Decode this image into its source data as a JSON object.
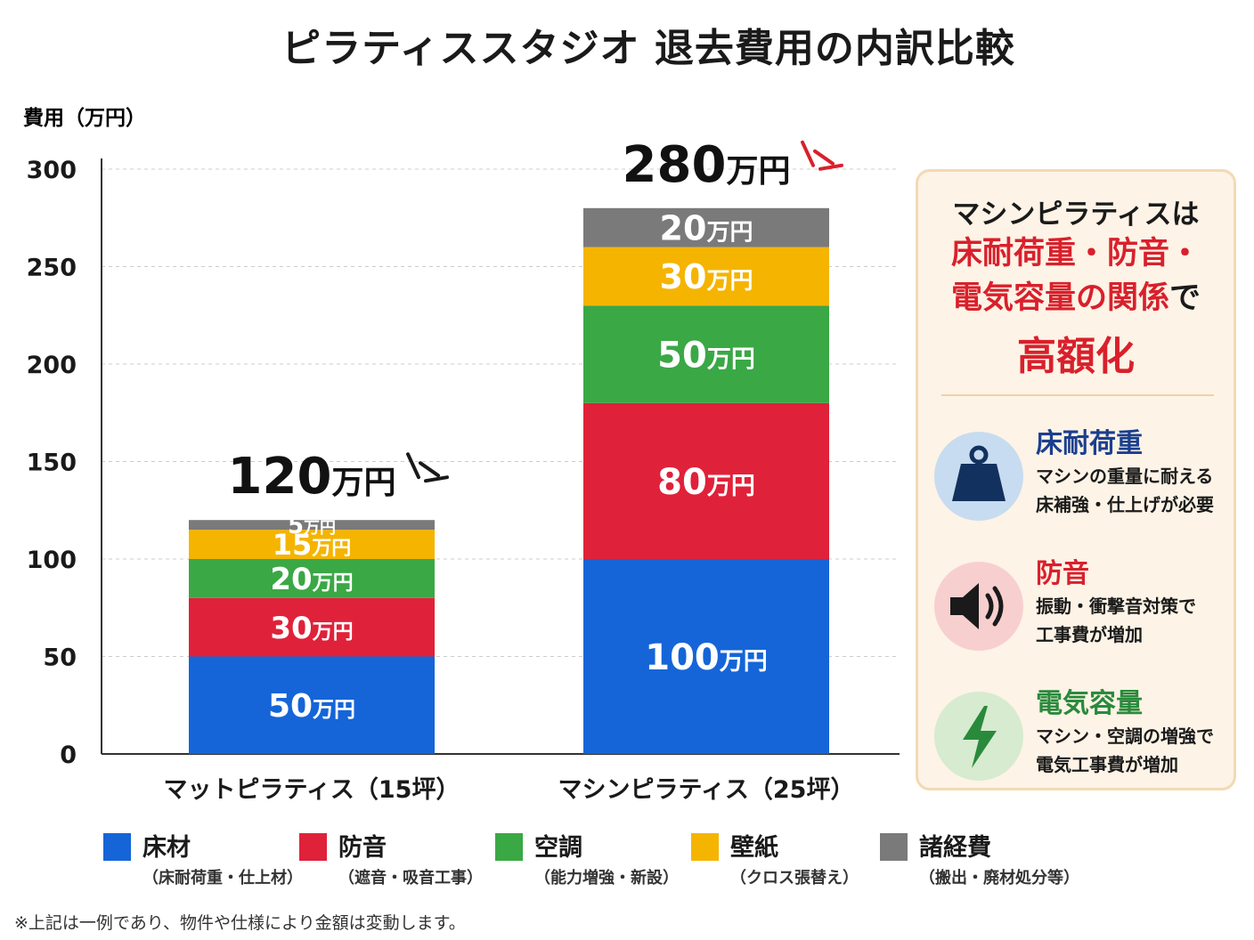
{
  "title": "ピラティススタジオ 退去費用の内訳比較",
  "chart_data": {
    "type": "bar",
    "stacked": true,
    "ylabel": "費用（万円）",
    "ylim": [
      0,
      300
    ],
    "yticks": [
      0,
      50,
      100,
      150,
      200,
      250,
      300
    ],
    "grid": true,
    "categories": [
      "マットピラティス（15坪）",
      "マシンピラティス（25坪）"
    ],
    "unit": "万円",
    "totals": [
      120,
      280
    ],
    "total_labels": [
      "120",
      "280"
    ],
    "series": [
      {
        "name": "床材",
        "color": "#1565d8",
        "values": [
          50,
          100
        ]
      },
      {
        "name": "防音",
        "color": "#e0213a",
        "values": [
          30,
          80
        ]
      },
      {
        "name": "空調",
        "color": "#3aa845",
        "values": [
          20,
          50
        ]
      },
      {
        "name": "壁紙",
        "color": "#f5b400",
        "values": [
          15,
          30
        ]
      },
      {
        "name": "諸経費",
        "color": "#7a7a7a",
        "values": [
          5,
          20
        ]
      }
    ],
    "legend_position": "bottom"
  },
  "legend": [
    {
      "name": "床材",
      "sub": "（床耐荷重・仕上材）",
      "color": "#1565d8"
    },
    {
      "name": "防音",
      "sub": "（遮音・吸音工事）",
      "color": "#e0213a"
    },
    {
      "name": "空調",
      "sub": "（能力増強・新設）",
      "color": "#3aa845"
    },
    {
      "name": "壁紙",
      "sub": "（クロス張替え）",
      "color": "#f5b400"
    },
    {
      "name": "諸経費",
      "sub": "（搬出・廃材処分等）",
      "color": "#7a7a7a"
    }
  ],
  "panel": {
    "line1": "マシンピラティスは",
    "line2": "床耐荷重・防音・",
    "line3_red": "電気容量の関係",
    "line3_tail": "で",
    "line4": "高額化",
    "features": [
      {
        "title": "床耐荷重",
        "desc1": "マシンの重量に耐える",
        "desc2": "床補強・仕上げが必要",
        "icon": "weight-icon",
        "title_color": "#1b3f8f",
        "bg": "#c7dcf0",
        "fg": "#12315e"
      },
      {
        "title": "防音",
        "desc1": "振動・衝撃音対策で",
        "desc2": "工事費が増加",
        "icon": "speaker-icon",
        "title_color": "#d9202c",
        "bg": "#f7cfcf",
        "fg": "#1a1a1a"
      },
      {
        "title": "電気容量",
        "desc1": "マシン・空調の増強で",
        "desc2": "電気工事費が増加",
        "icon": "lightning-icon",
        "title_color": "#2a8a3c",
        "bg": "#d6ebcf",
        "fg": "#2a8a3c"
      }
    ]
  },
  "footnote": "※上記は一例であり、物件や仕様により金額は変動します。"
}
